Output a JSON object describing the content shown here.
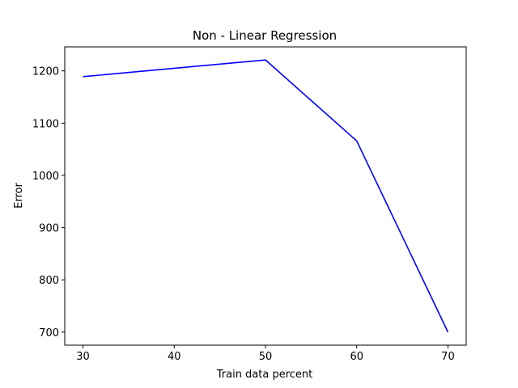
{
  "chart_data": {
    "type": "line",
    "title": "Non - Linear Regression",
    "xlabel": "Train data percent",
    "ylabel": "Error",
    "xlim": [
      28,
      72
    ],
    "ylim": [
      675,
      1246
    ],
    "xticks": [
      30,
      40,
      50,
      60,
      70
    ],
    "yticks": [
      700,
      800,
      900,
      1000,
      1100,
      1200
    ],
    "grid": false,
    "legend": false,
    "series": [
      {
        "color": "#0000ff",
        "x": [
          30,
          50,
          60,
          70
        ],
        "y": [
          1189,
          1221,
          1066,
          700
        ]
      }
    ]
  }
}
